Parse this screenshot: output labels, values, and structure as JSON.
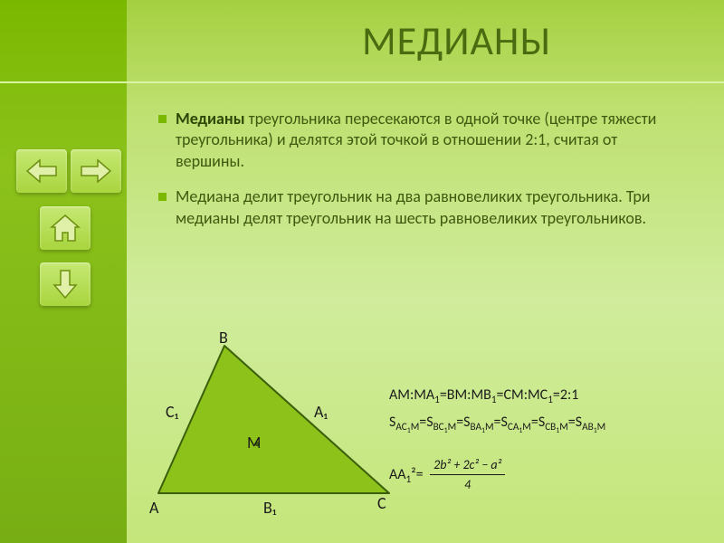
{
  "title": "МЕДИАНЫ",
  "bullets": [
    {
      "lead": "Медианы",
      "rest": " треугольника пересекаются в одной точке (центре тяжести треугольника) и делятся этой точкой в отношении 2:1, считая от вершины."
    },
    {
      "lead": "",
      "rest": "Медиана делит треугольник на два равновеликих треугольника. Три медианы делят треугольник на шесть равновеликих треугольников."
    }
  ],
  "labels": {
    "A": "A",
    "B": "B",
    "C": "C",
    "A1": "A₁",
    "B1": "B₁",
    "C1": "C₁",
    "M": "M"
  },
  "formulas": {
    "ratio": "AM:MA₁=BM:MB₁=CM:MC₁=2:1",
    "areas": "S_{AC₁M}=S_{BC₁M}=S_{BA₁M}=S_{CA₁M}=S_{CB₁M}=S_{AB₁M}",
    "median_lhs": "AA₁²=",
    "median_frac_num": "2b² + 2c² − a²",
    "median_frac_den": "4"
  },
  "triangle": {
    "A": [
      20,
      175
    ],
    "B": [
      93,
      12
    ],
    "C": [
      275,
      175
    ],
    "fill": "#8cc21a",
    "stroke": "#3b5f0a",
    "stroke_width": 2,
    "centroid": [
      129.3,
      120.7
    ]
  },
  "colors": {
    "bg_top": "#a5d040",
    "bg_bot": "#c4e67a",
    "sidebar": "#7ab800",
    "title": "#4a6b10",
    "text": "#405a0f",
    "label": "#1a1a1a",
    "button_face": "#b4dd52",
    "button_icon": "#6d8f10"
  },
  "nav": {
    "back": "arrow-left",
    "next": "arrow-right",
    "home": "home",
    "down": "arrow-down"
  }
}
